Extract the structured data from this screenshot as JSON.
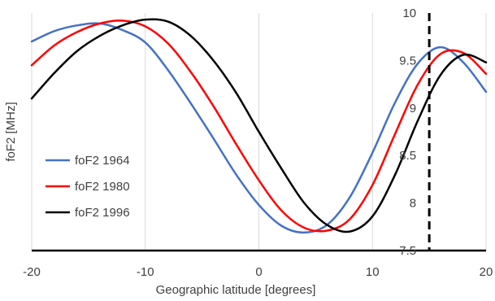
{
  "chart_data": {
    "type": "line",
    "xlabel": "Geographic latitude [degrees]",
    "ylabel": "foF2 [MHz]",
    "xlim": [
      -20,
      20
    ],
    "ylim": [
      7.5,
      10
    ],
    "x_ticks": [
      -20,
      -10,
      0,
      10,
      20
    ],
    "y_ticks": [
      7.5,
      8,
      8.5,
      9,
      9.5,
      10
    ],
    "x_tick_labels": [
      "-20",
      "-10",
      "0",
      "10",
      "20"
    ],
    "y_tick_labels": [
      "7.5",
      "8",
      "8.5",
      "9",
      "9.5",
      "10"
    ],
    "grid": "vertical",
    "legend_position": "left",
    "reference_line": {
      "x": 15,
      "style": "dashed",
      "color": "#000000"
    },
    "series": [
      {
        "name": "foF2 1964",
        "color": "#4472C4",
        "x": [
          -20,
          -18,
          -16,
          -14,
          -12,
          -10,
          -8,
          -6,
          -4,
          -2,
          0,
          2,
          4,
          6,
          8,
          10,
          12,
          14,
          16,
          18,
          20
        ],
        "y": [
          9.7,
          9.81,
          9.87,
          9.89,
          9.82,
          9.69,
          9.4,
          9.05,
          8.68,
          8.3,
          7.98,
          7.76,
          7.69,
          7.77,
          8.06,
          8.53,
          9.06,
          9.47,
          9.64,
          9.48,
          9.17
        ]
      },
      {
        "name": "foF2 1980",
        "color": "#FF0000",
        "x": [
          -20,
          -18,
          -16,
          -14,
          -12,
          -10,
          -8,
          -6,
          -4,
          -2,
          0,
          2,
          4,
          6,
          8,
          10,
          12,
          14,
          16,
          18,
          20
        ],
        "y": [
          9.45,
          9.66,
          9.8,
          9.89,
          9.92,
          9.86,
          9.68,
          9.38,
          9.02,
          8.62,
          8.24,
          7.92,
          7.74,
          7.71,
          7.83,
          8.19,
          8.73,
          9.25,
          9.57,
          9.58,
          9.36
        ]
      },
      {
        "name": "foF2 1996",
        "color": "#000000",
        "x": [
          -20,
          -18,
          -16,
          -14,
          -12,
          -10,
          -8,
          -6,
          -4,
          -2,
          0,
          2,
          4,
          6,
          8,
          10,
          12,
          14,
          16,
          18,
          20
        ],
        "y": [
          9.1,
          9.37,
          9.6,
          9.76,
          9.87,
          9.93,
          9.91,
          9.76,
          9.5,
          9.16,
          8.75,
          8.36,
          8.0,
          7.77,
          7.7,
          7.86,
          8.3,
          8.87,
          9.35,
          9.56,
          9.48
        ]
      }
    ]
  }
}
